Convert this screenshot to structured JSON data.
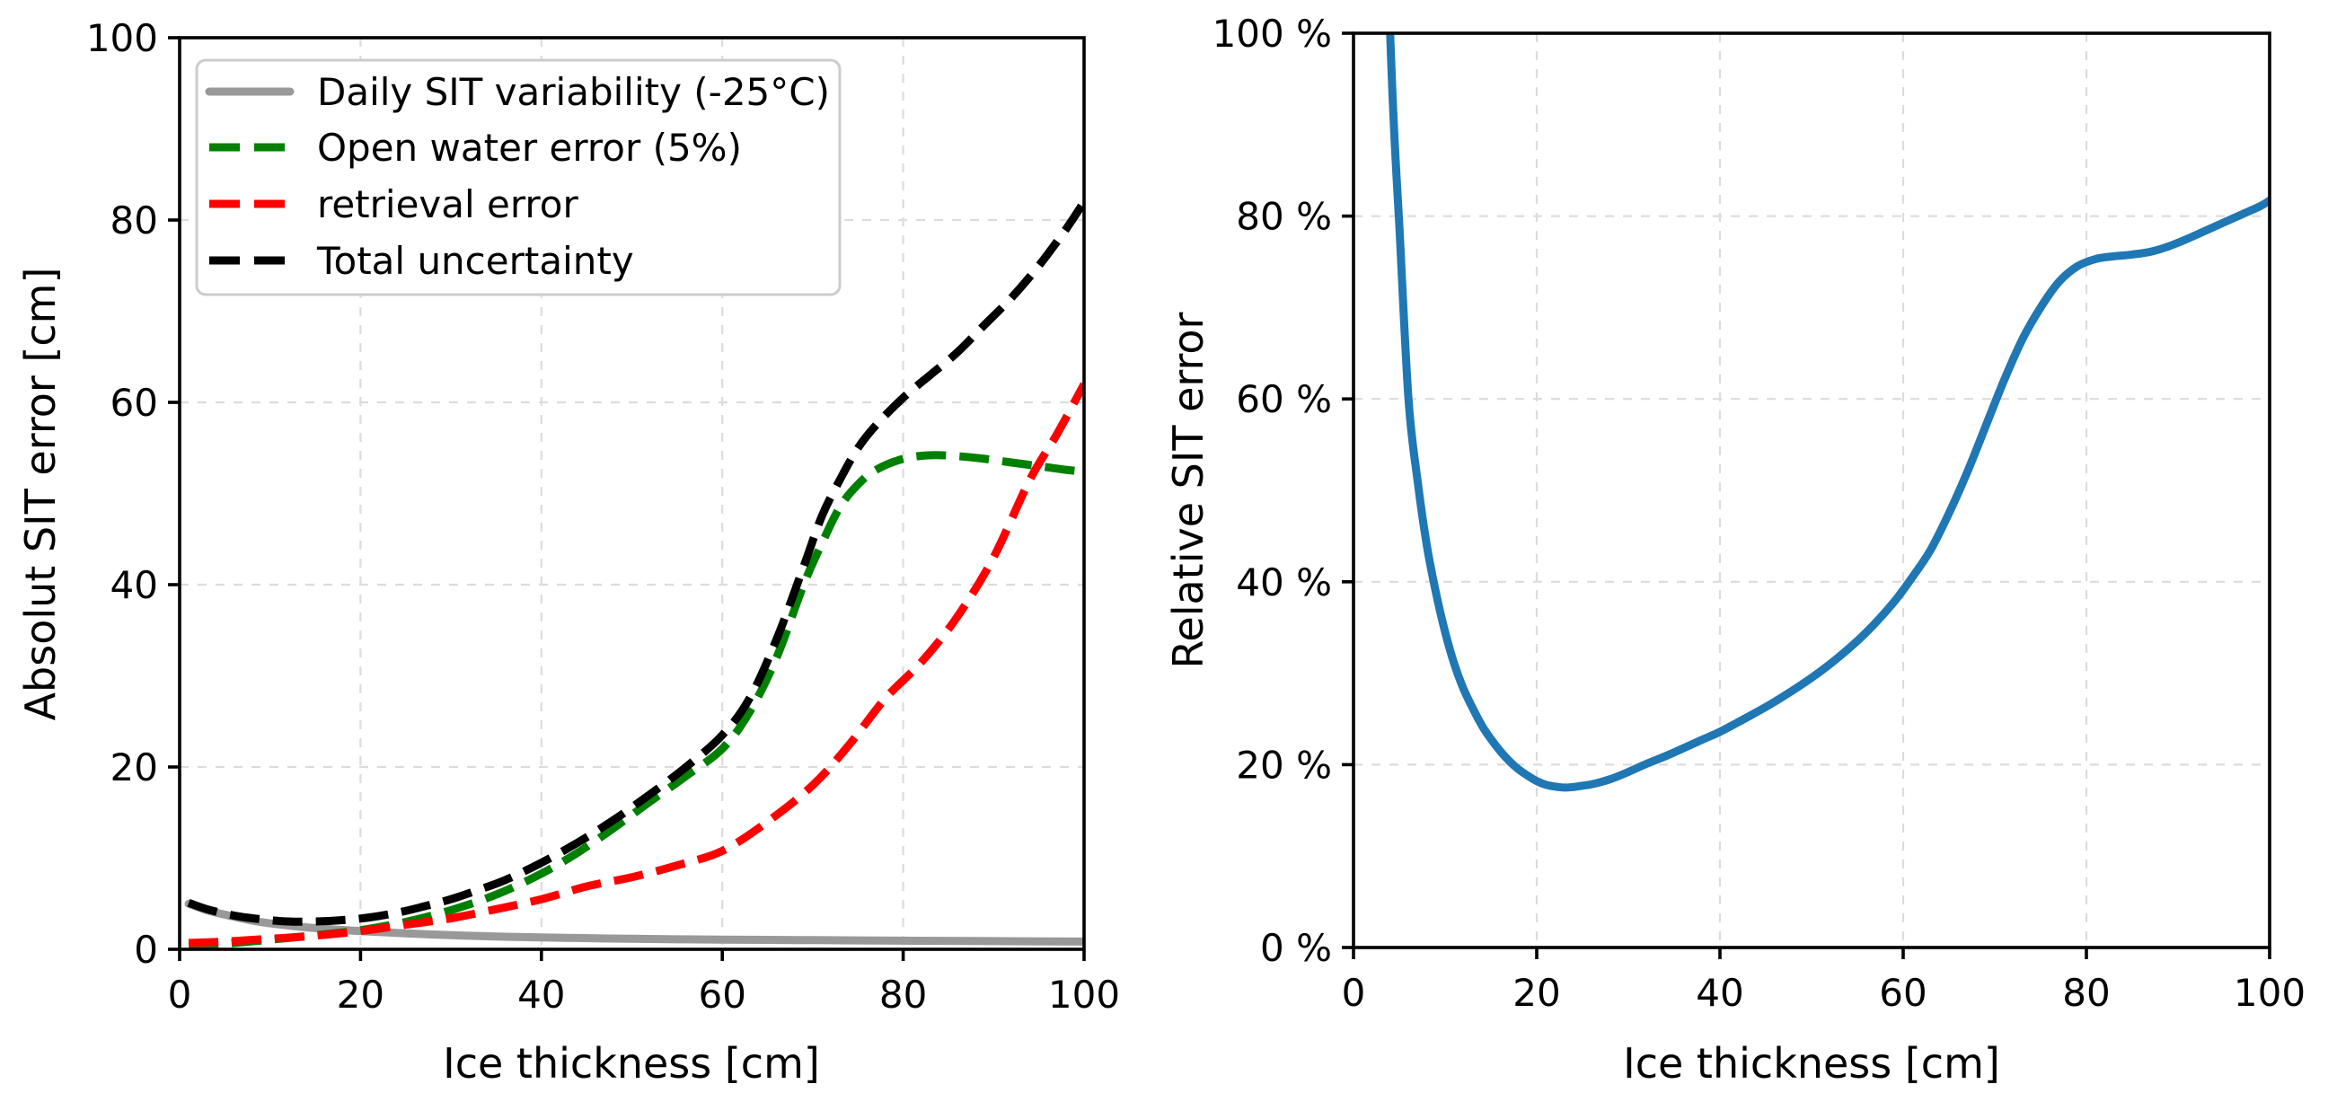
{
  "figure": {
    "background": "#ffffff",
    "colors": {
      "grid": "#dcdcdc",
      "axes": "#000000",
      "legend_border": "#cccccc",
      "legend_background": "#ffffff",
      "accent_blue": "#1f77b4"
    }
  },
  "chart_data": [
    {
      "id": "absolute-sit-error",
      "type": "line",
      "title": "",
      "xlabel": "Ice thickness [cm]",
      "ylabel": "Absolut SIT error [cm]",
      "xlim": [
        0,
        100
      ],
      "ylim": [
        0,
        100
      ],
      "xticks": [
        0,
        20,
        40,
        60,
        80,
        100
      ],
      "xticklabels": [
        "0",
        "20",
        "40",
        "60",
        "80",
        "100"
      ],
      "yticks": [
        0,
        20,
        40,
        60,
        80,
        100
      ],
      "yticklabels": [
        "0",
        "20",
        "40",
        "60",
        "80",
        "100"
      ],
      "grid": true,
      "legend": {
        "visible": true,
        "location": "upper left"
      },
      "series": [
        {
          "name": "Daily SIT variability (-25°C)",
          "color": "#999999",
          "style": "solid",
          "linewidth": 9,
          "x": [
            1,
            3,
            5,
            8,
            10,
            13,
            16,
            20,
            25,
            30,
            35,
            40,
            50,
            60,
            70,
            80,
            90,
            100
          ],
          "y": [
            5.0,
            4.3,
            3.8,
            3.15,
            2.85,
            2.5,
            2.25,
            2.0,
            1.75,
            1.55,
            1.4,
            1.3,
            1.15,
            1.05,
            1.0,
            0.95,
            0.9,
            0.85
          ]
        },
        {
          "name": "Open water error (5%)",
          "color": "#008000",
          "style": "dashed",
          "linewidth": 9,
          "x": [
            1,
            5,
            10,
            15,
            20,
            25,
            30,
            35,
            40,
            44,
            48,
            52,
            56,
            60,
            63,
            66,
            69,
            71,
            73,
            75,
            77,
            80,
            83,
            86,
            89,
            92,
            95,
            98,
            100
          ],
          "y": [
            0.3,
            0.6,
            1.05,
            1.55,
            2.1,
            3.0,
            4.3,
            6.0,
            8.3,
            10.6,
            13.3,
            16.2,
            19.0,
            22.0,
            26.0,
            32.0,
            40.0,
            44.5,
            48.5,
            51.0,
            52.6,
            53.8,
            54.2,
            54.1,
            53.8,
            53.4,
            53.0,
            52.6,
            52.4
          ]
        },
        {
          "name": "retrieval error",
          "color": "#ff0000",
          "style": "dashed",
          "linewidth": 9,
          "x": [
            1,
            5,
            10,
            15,
            20,
            25,
            30,
            35,
            40,
            45,
            50,
            55,
            60,
            65,
            70,
            74,
            78,
            82,
            86,
            90,
            94,
            97,
            100
          ],
          "y": [
            0.7,
            0.85,
            1.15,
            1.5,
            2.0,
            2.7,
            3.4,
            4.4,
            5.5,
            6.9,
            7.9,
            9.2,
            10.8,
            14.0,
            18.0,
            22.4,
            27.5,
            31.5,
            36.5,
            43.0,
            51.5,
            56.5,
            62.0
          ]
        },
        {
          "name": "Total uncertainty",
          "color": "#000000",
          "style": "dashed",
          "linewidth": 9,
          "x": [
            1,
            3,
            6,
            9,
            12,
            15,
            18,
            21,
            24,
            27,
            30,
            33,
            36,
            40,
            44,
            48,
            52,
            56,
            60,
            63,
            66,
            69,
            71,
            73,
            75,
            77,
            80,
            83,
            86,
            89,
            92,
            95,
            98,
            100
          ],
          "y": [
            5.1,
            4.4,
            3.7,
            3.3,
            3.05,
            3.05,
            3.2,
            3.5,
            4.0,
            4.7,
            5.5,
            6.5,
            7.6,
            9.5,
            11.7,
            14.2,
            17.0,
            20.0,
            23.5,
            27.5,
            34.0,
            42.0,
            47.5,
            51.5,
            55.0,
            57.5,
            60.5,
            63.0,
            65.5,
            68.5,
            71.5,
            75.0,
            79.0,
            82.0
          ]
        }
      ]
    },
    {
      "id": "relative-sit-error",
      "type": "line",
      "title": "",
      "xlabel": "Ice thickness [cm]",
      "ylabel": "Relative SIT error",
      "xlim": [
        0,
        100
      ],
      "ylim": [
        0,
        100
      ],
      "xticks": [
        0,
        20,
        40,
        60,
        80,
        100
      ],
      "xticklabels": [
        "0",
        "20",
        "40",
        "60",
        "80",
        "100"
      ],
      "yticks": [
        0,
        20,
        40,
        60,
        80,
        100
      ],
      "yticklabels": [
        "0 %",
        "20 %",
        "40 %",
        "60 %",
        "80 %",
        "100 %"
      ],
      "grid": true,
      "legend": {
        "visible": false
      },
      "series": [
        {
          "name": "Relative SIT error",
          "color": "#1f77b4",
          "style": "solid",
          "linewidth": 9,
          "x": [
            3,
            4,
            4.5,
            5,
            6,
            7,
            8,
            9,
            10,
            11,
            12,
            13,
            14,
            15,
            16,
            17,
            18,
            19,
            20,
            21,
            22,
            23,
            24,
            25,
            26,
            28,
            30,
            32,
            34,
            36,
            38,
            40,
            43,
            46,
            50,
            53,
            56,
            59,
            61,
            63,
            65,
            67,
            69,
            71,
            73,
            75,
            77,
            79,
            81,
            83,
            85,
            87,
            89,
            91,
            93,
            95,
            97,
            99,
            100
          ],
          "y": [
            130,
            100,
            88,
            79,
            60,
            51,
            44,
            38.8,
            34.5,
            31,
            28.3,
            26.2,
            24.3,
            22.8,
            21.5,
            20.4,
            19.5,
            18.8,
            18.2,
            17.8,
            17.6,
            17.5,
            17.55,
            17.7,
            17.85,
            18.4,
            19.2,
            20.1,
            20.9,
            21.8,
            22.7,
            23.6,
            25.2,
            26.9,
            29.5,
            31.8,
            34.5,
            37.8,
            40.5,
            43.5,
            47.5,
            52,
            57,
            62,
            66.5,
            70,
            72.8,
            74.5,
            75.3,
            75.6,
            75.8,
            76.1,
            76.7,
            77.5,
            78.4,
            79.3,
            80.2,
            81.1,
            81.7
          ]
        }
      ]
    }
  ]
}
